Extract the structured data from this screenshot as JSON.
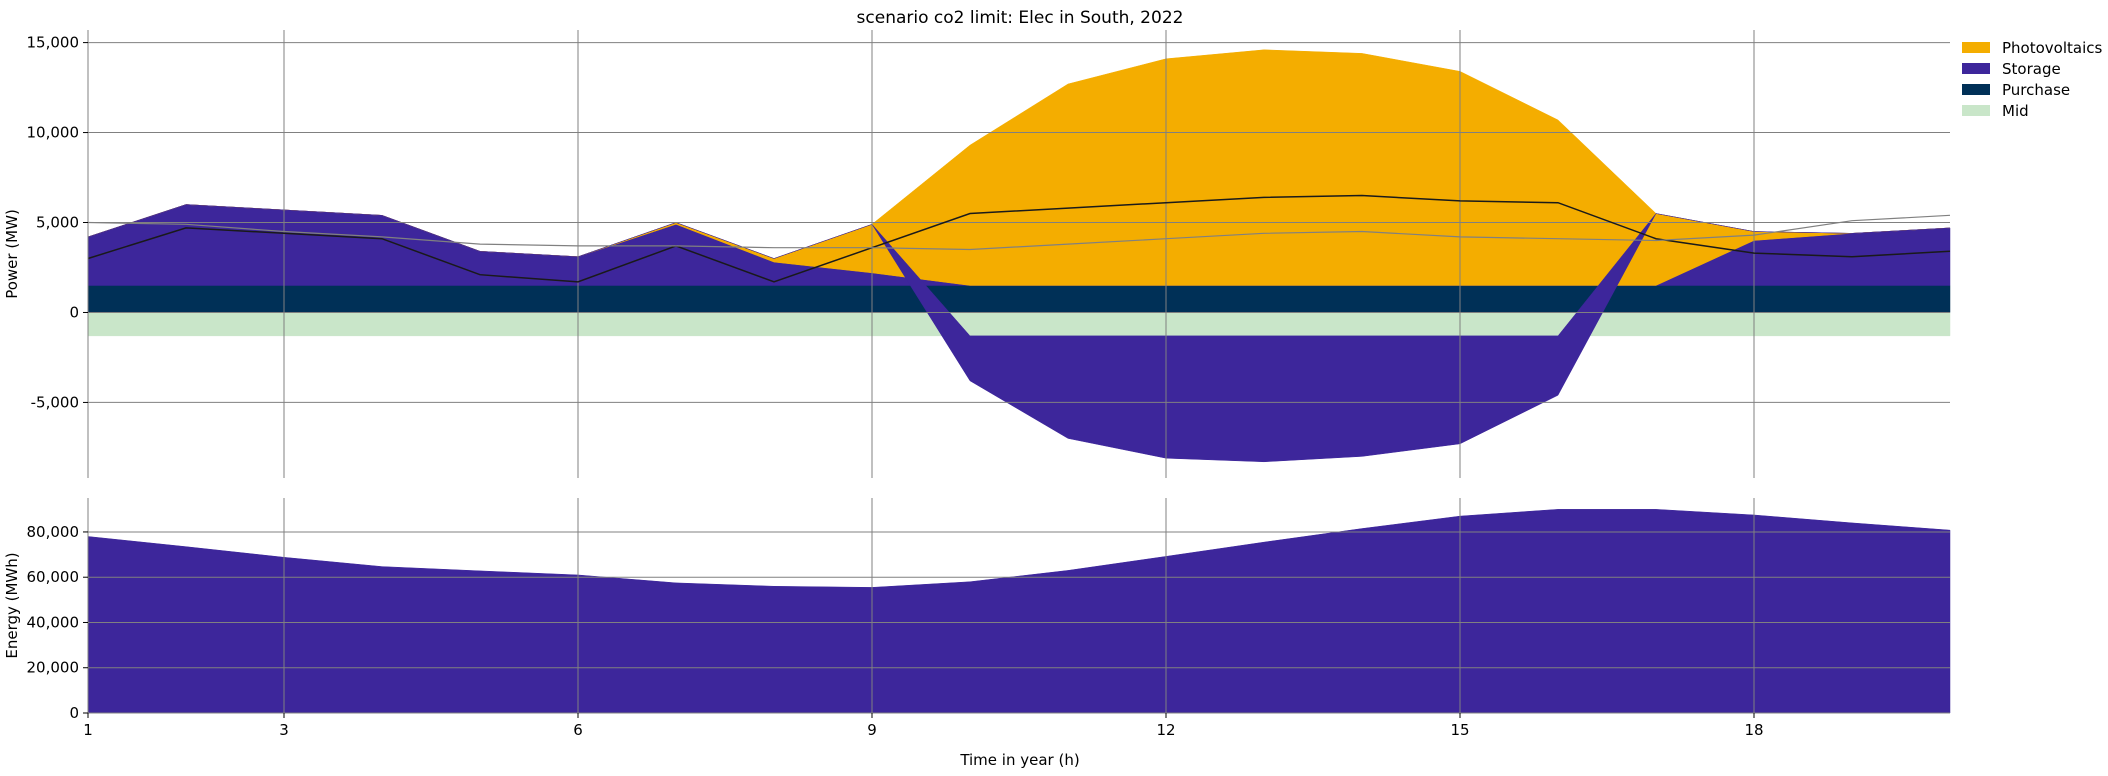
{
  "chart_data": {
    "title": "scenario co2 limit: Elec in South, 2022",
    "xlabel": "Time in year (h)",
    "x_ticks": [
      1,
      3,
      6,
      9,
      12,
      15,
      18
    ],
    "x_tick_labels": [
      "1",
      "3",
      "6",
      "9",
      "12",
      "15",
      "18"
    ],
    "xlim": [
      1,
      20
    ],
    "x": [
      1,
      2,
      3,
      4,
      5,
      6,
      7,
      8,
      9,
      10,
      11,
      12,
      13,
      14,
      15,
      16,
      17,
      18,
      19,
      20
    ],
    "legend": {
      "placement": "top-right, outside plot",
      "entries": [
        {
          "name": "Photovoltaics",
          "color": "#f4ad00"
        },
        {
          "name": "Storage",
          "color": "#3d269b"
        },
        {
          "name": "Purchase",
          "color": "#003057"
        },
        {
          "name": "Mid",
          "color": "#c9e6c9"
        }
      ]
    },
    "panels": [
      {
        "type": "area",
        "ylabel": "Power (MW)",
        "ylim": [
          -9200,
          15700
        ],
        "y_ticks": [
          -5000,
          0,
          5000,
          10000,
          15000
        ],
        "y_tick_labels": [
          "-5,000",
          "0",
          "5,000",
          "10,000",
          "15,000"
        ],
        "grid": true,
        "series": [
          {
            "name": "Purchase",
            "color": "#003057",
            "values": [
              1500,
              1500,
              1500,
              1500,
              1500,
              1500,
              1500,
              1500,
              1500,
              1500,
              1500,
              1500,
              1500,
              1500,
              1500,
              1500,
              1500,
              1500,
              1500,
              1500
            ]
          },
          {
            "name": "Storage",
            "color": "#3d269b",
            "values": [
              2700,
              4500,
              4200,
              3900,
              1900,
              1600,
              3400,
              1300,
              700,
              0,
              0,
              0,
              0,
              0,
              0,
              0,
              0,
              2500,
              2900,
              3200
            ]
          },
          {
            "name": "Photovoltaics",
            "color": "#f4ad00",
            "values": [
              0,
              0,
              0,
              0,
              0,
              0,
              100,
              200,
              2700,
              7800,
              11200,
              12600,
              13100,
              12900,
              11900,
              9200,
              4000,
              500,
              0,
              0
            ]
          },
          {
            "name": "Mid",
            "color": "#c9e6c9",
            "values": [
              -1300,
              -1300,
              -1300,
              -1300,
              -1300,
              -1300,
              -1300,
              -1300,
              -1300,
              -1300,
              -1300,
              -1300,
              -1300,
              -1300,
              -1300,
              -1300,
              -1300,
              -1300,
              -1300,
              -1300
            ]
          },
          {
            "name": "Storage",
            "color": "#3d269b",
            "values": [
              0,
              0,
              0,
              0,
              0,
              0,
              0,
              0,
              0,
              -2500,
              -5700,
              -6800,
              -7000,
              -6700,
              -6000,
              -3300,
              0,
              0,
              0,
              0
            ]
          }
        ],
        "lines": [
          {
            "color": "#1a1a1a",
            "width": 1.5,
            "values": [
              3000,
              4700,
              4400,
              4100,
              2100,
              1700,
              3700,
              1700,
              3600,
              5500,
              5800,
              6100,
              6400,
              6500,
              6200,
              6100,
              4100,
              3300,
              3100,
              3400
            ]
          },
          {
            "color": "#808080",
            "width": 1.2,
            "values": [
              5000,
              4900,
              4500,
              4200,
              3800,
              3700,
              3700,
              3600,
              3600,
              3500,
              3800,
              4100,
              4400,
              4500,
              4200,
              4100,
              4000,
              4300,
              5100,
              5400
            ]
          }
        ]
      },
      {
        "type": "area",
        "ylabel": "Energy (MWh)",
        "ylim": [
          0,
          95000
        ],
        "y_ticks": [
          0,
          20000,
          40000,
          60000,
          80000
        ],
        "y_tick_labels": [
          "0",
          "20,000",
          "40,000",
          "60,000",
          "80,000"
        ],
        "grid": true,
        "series": [
          {
            "name": "Storage",
            "color": "#3d269b",
            "values": [
              78000,
              73500,
              68800,
              64700,
              62800,
              61000,
              57500,
              56000,
              55500,
              58000,
              63000,
              69200,
              75500,
              81500,
              87000,
              90000,
              90000,
              87500,
              84000,
              80800
            ]
          }
        ]
      }
    ]
  }
}
